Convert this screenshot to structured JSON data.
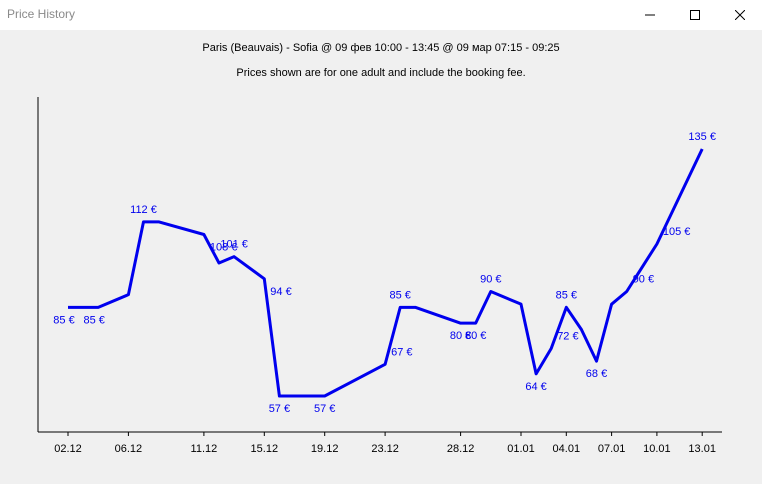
{
  "window": {
    "title": "Price History",
    "controls": [
      "minimize",
      "maximize",
      "close"
    ]
  },
  "header": {
    "route_line": "Paris (Beauvais) - Sofia @ 09 фев 10:00 - 13:45 @ 09 мар 07:15 - 09:25",
    "note": "Prices shown are for one adult and include the booking fee."
  },
  "chart_data": {
    "type": "line",
    "title": "",
    "xlabel": "",
    "ylabel": "",
    "x_ticks": [
      "02.12",
      "06.12",
      "11.12",
      "15.12",
      "19.12",
      "23.12",
      "28.12",
      "01.01",
      "04.01",
      "07.01",
      "10.01",
      "13.01"
    ],
    "series": [
      {
        "color": "#0000ee",
        "x": [
          "2.12",
          "4.12",
          "6.12",
          "7.12",
          "8.12",
          "11.12",
          "12.12",
          "13.12",
          "15.12",
          "16.12",
          "19.12",
          "23.12",
          "24.12",
          "25.12",
          "28.12",
          "29.12",
          "30.12",
          "01.01",
          "02.01",
          "03.01",
          "04.01",
          "05.01",
          "06.01",
          "07.01",
          "08.01",
          "10.01",
          "13.01"
        ],
        "values": [
          85,
          85,
          89,
          112,
          112,
          108,
          99,
          101,
          94,
          57,
          57,
          67,
          85,
          85,
          80,
          80,
          90,
          86,
          64,
          72,
          85,
          78,
          68,
          86,
          90,
          105,
          135
        ],
        "labels": [
          "85 €",
          "85 €",
          "",
          "112 €",
          "",
          "108 €",
          "",
          "101 €",
          "94 €",
          "57 €",
          "57 €",
          "67 €",
          "85 €",
          "",
          "80 €",
          "80 €",
          "90 €",
          "",
          "64 €",
          "72 €",
          "85 €",
          "",
          "68 €",
          "",
          "90 €",
          "105 €",
          "135 €"
        ]
      }
    ],
    "ylim": [
      47,
      140
    ],
    "grid": false,
    "legend": "none"
  }
}
